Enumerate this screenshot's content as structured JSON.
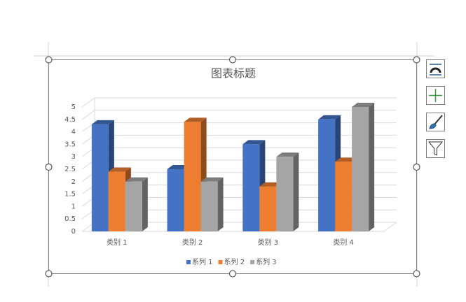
{
  "chart_data": {
    "type": "bar",
    "title": "图表标题",
    "categories": [
      "类别 1",
      "类别 2",
      "类别 3",
      "类别 4"
    ],
    "series": [
      {
        "name": "系列 1",
        "color": "#4472c4",
        "values": [
          4.3,
          2.5,
          3.5,
          4.5
        ]
      },
      {
        "name": "系列 2",
        "color": "#ed7d31",
        "values": [
          2.4,
          4.4,
          1.8,
          2.8
        ]
      },
      {
        "name": "系列 3",
        "color": "#a5a5a5",
        "values": [
          2,
          2,
          3,
          5
        ]
      }
    ],
    "ylim": [
      0,
      5
    ],
    "yticks": [
      0,
      0.5,
      1,
      1.5,
      2,
      2.5,
      3,
      3.5,
      4,
      4.5,
      5
    ],
    "grid": true,
    "legend": "bottom"
  }
}
